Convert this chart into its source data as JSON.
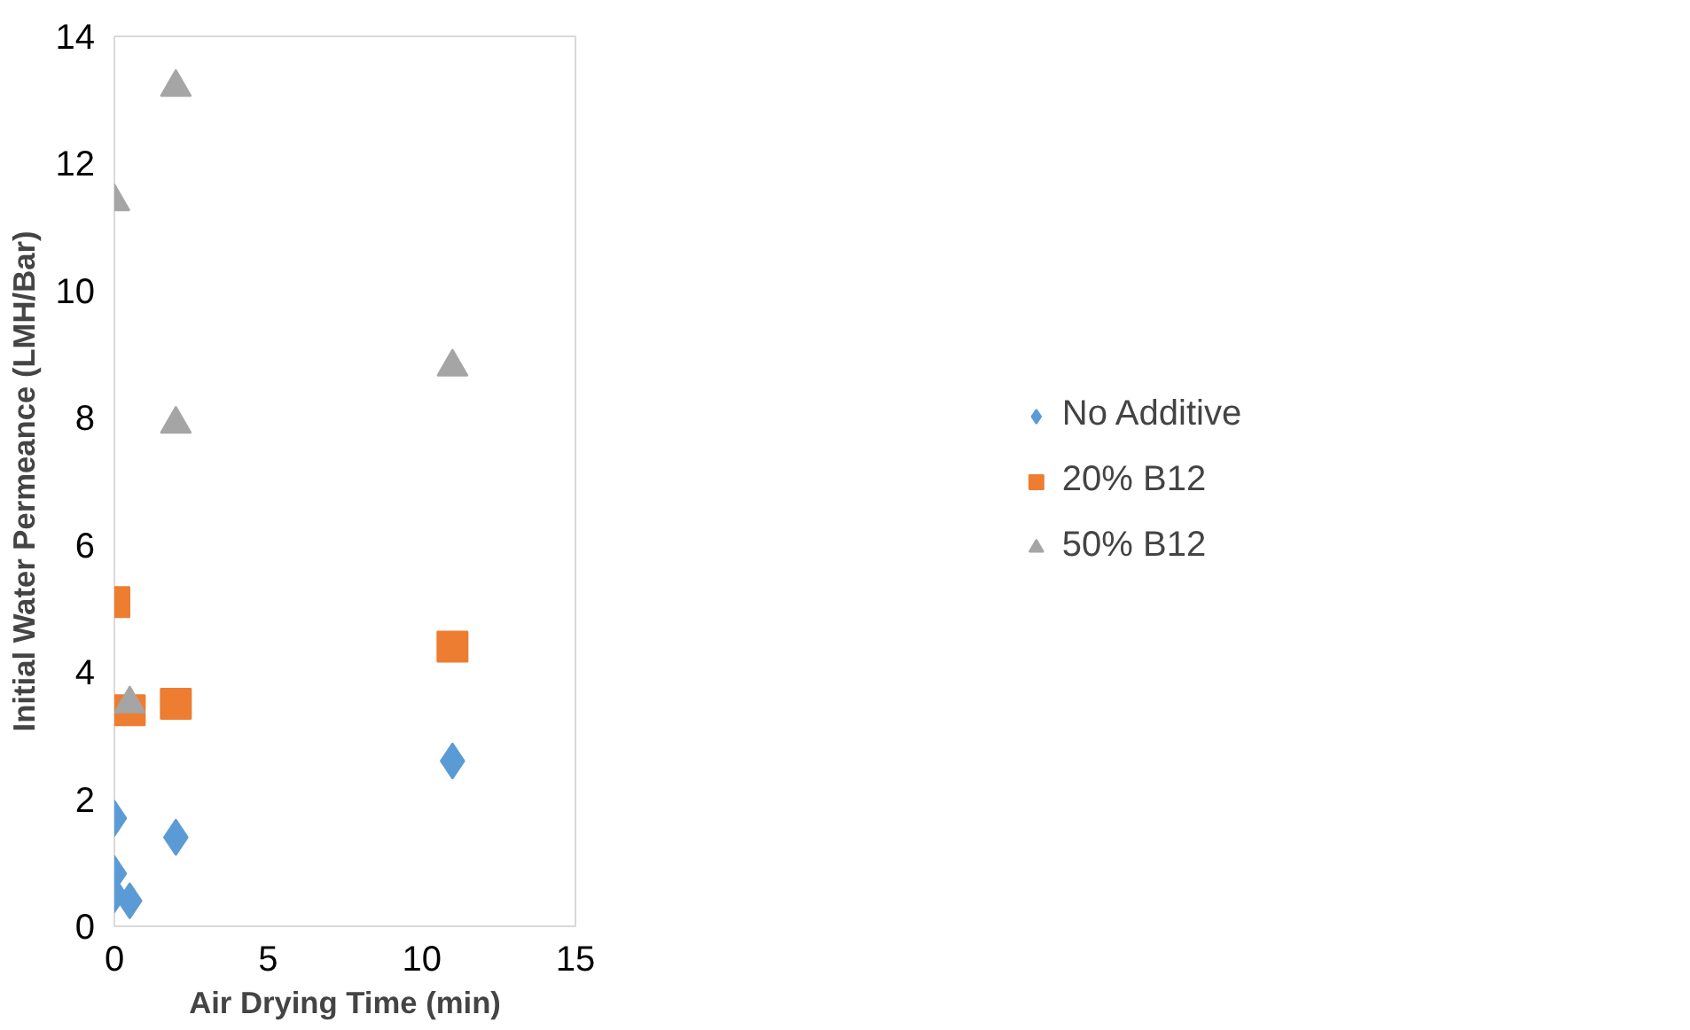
{
  "chart_data": {
    "type": "scatter",
    "xlabel": "Air Drying Time (min)",
    "ylabel": "Initial Water Permeance (LMH/Bar)",
    "xlim": [
      0,
      15
    ],
    "ylim": [
      0,
      14
    ],
    "xticks": [
      0,
      5,
      10,
      15
    ],
    "yticks": [
      0,
      2,
      4,
      6,
      8,
      10,
      12,
      14
    ],
    "grid": false,
    "legend": "right",
    "series": [
      {
        "name": "No Additive",
        "color": "#5b9bd5",
        "marker": "diamond",
        "x": [
          0,
          0,
          0,
          0.5,
          2,
          11
        ],
        "values": [
          1.7,
          0.83,
          0.5,
          0.4,
          1.4,
          2.6
        ]
      },
      {
        "name": "20% B12",
        "color": "#ed7d31",
        "marker": "square",
        "x": [
          0,
          0.5,
          2,
          11
        ],
        "values": [
          5.1,
          3.4,
          3.5,
          4.4
        ]
      },
      {
        "name": "50% B12",
        "color": "#a5a5a5",
        "marker": "triangle",
        "x": [
          0,
          0.5,
          2,
          2,
          11
        ],
        "values": [
          11.4,
          3.5,
          13.2,
          7.9,
          8.8
        ]
      }
    ]
  }
}
